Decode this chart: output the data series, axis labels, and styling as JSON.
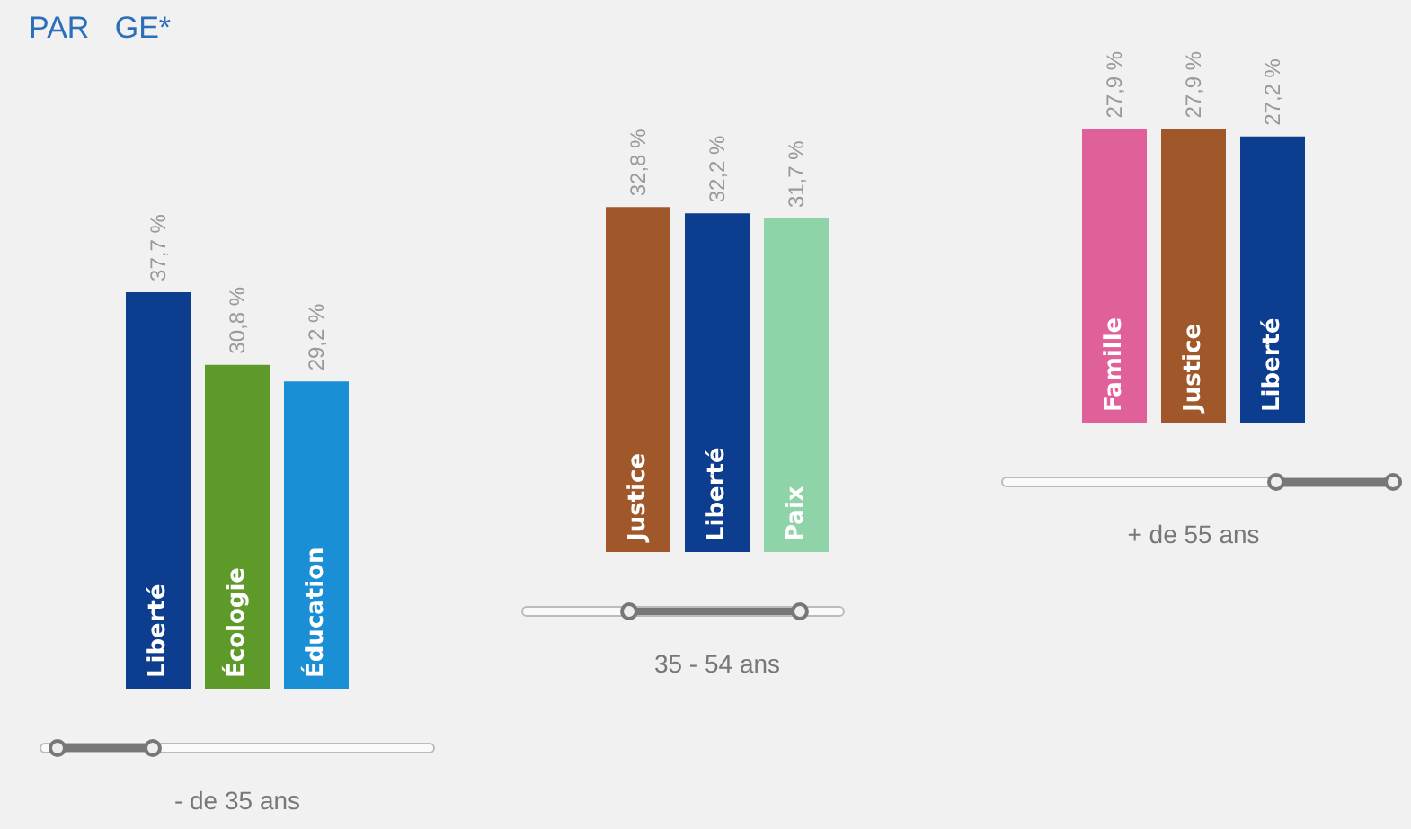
{
  "chart_data": [
    {
      "type": "bar",
      "title": "PAR   GE*",
      "xlabel": "- de 35 ans",
      "categories": [
        "Liberté",
        "Écologie",
        "Éducation"
      ],
      "values": [
        37.7,
        30.8,
        29.2
      ],
      "colors": [
        "#0d3d8f",
        "#5e9a2a",
        "#1a8fd6"
      ],
      "value_labels": [
        "37,7 %",
        "30,8 %",
        "29,2 %"
      ]
    },
    {
      "type": "bar",
      "xlabel": "35 - 54 ans",
      "categories": [
        "Justice",
        "Liberté",
        "Paix"
      ],
      "values": [
        32.8,
        32.2,
        31.7
      ],
      "colors": [
        "#a0582a",
        "#0d3d8f",
        "#8fd3a8"
      ],
      "value_labels": [
        "32,8 %",
        "32,2 %",
        "31,7 %"
      ]
    },
    {
      "type": "bar",
      "xlabel": "+ de 55 ans",
      "categories": [
        "Famille",
        "Justice",
        "Liberté"
      ],
      "values": [
        27.9,
        27.9,
        27.2
      ],
      "colors": [
        "#e0609a",
        "#a0582a",
        "#0d3d8f"
      ],
      "value_labels": [
        "27,9 %",
        "27,9 %",
        "27,2 %"
      ]
    }
  ]
}
